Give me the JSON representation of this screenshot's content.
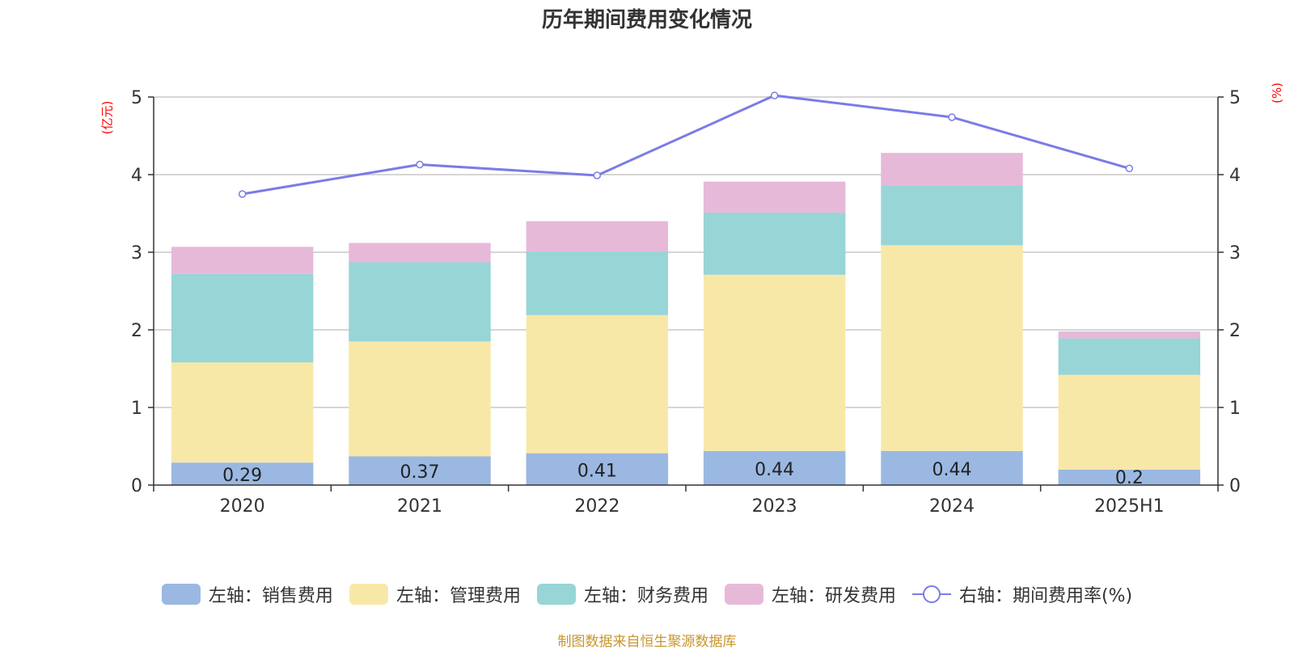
{
  "chart_data": {
    "type": "bar",
    "title": "历年期间费用变化情况",
    "left_unit": "(亿元)",
    "right_unit": "(%)",
    "categories": [
      "2020",
      "2021",
      "2022",
      "2023",
      "2024",
      "2025H1"
    ],
    "ylim_left": [
      0,
      5
    ],
    "ylim_right": [
      0,
      5
    ],
    "yticks": [
      "0",
      "1",
      "2",
      "3",
      "4",
      "5"
    ],
    "grid": true,
    "legend_position": "bottom",
    "series": [
      {
        "name": "左轴：销售费用",
        "axis": "left",
        "type": "bar",
        "color": "#9bb8e2",
        "values": [
          0.29,
          0.37,
          0.41,
          0.44,
          0.44,
          0.2
        ],
        "labels": [
          "0.29",
          "0.37",
          "0.41",
          "0.44",
          "0.44",
          "0.2"
        ]
      },
      {
        "name": "左轴：管理费用",
        "axis": "left",
        "type": "bar",
        "color": "#f8e8a8",
        "values": [
          1.29,
          1.48,
          1.78,
          2.27,
          2.65,
          1.22
        ]
      },
      {
        "name": "左轴：财务费用",
        "axis": "left",
        "type": "bar",
        "color": "#98d5d6",
        "values": [
          1.14,
          1.02,
          0.82,
          0.8,
          0.77,
          0.47
        ]
      },
      {
        "name": "左轴：研发费用",
        "axis": "left",
        "type": "bar",
        "color": "#e7b9d9",
        "values": [
          0.35,
          0.25,
          0.39,
          0.4,
          0.42,
          0.09
        ]
      },
      {
        "name": "右轴：期间费用率(%)",
        "axis": "right",
        "type": "line",
        "color": "#7a7ce6",
        "values": [
          3.75,
          4.13,
          3.99,
          5.02,
          4.74,
          4.08
        ]
      }
    ]
  },
  "footer": {
    "source": "制图数据来自恒生聚源数据库"
  }
}
